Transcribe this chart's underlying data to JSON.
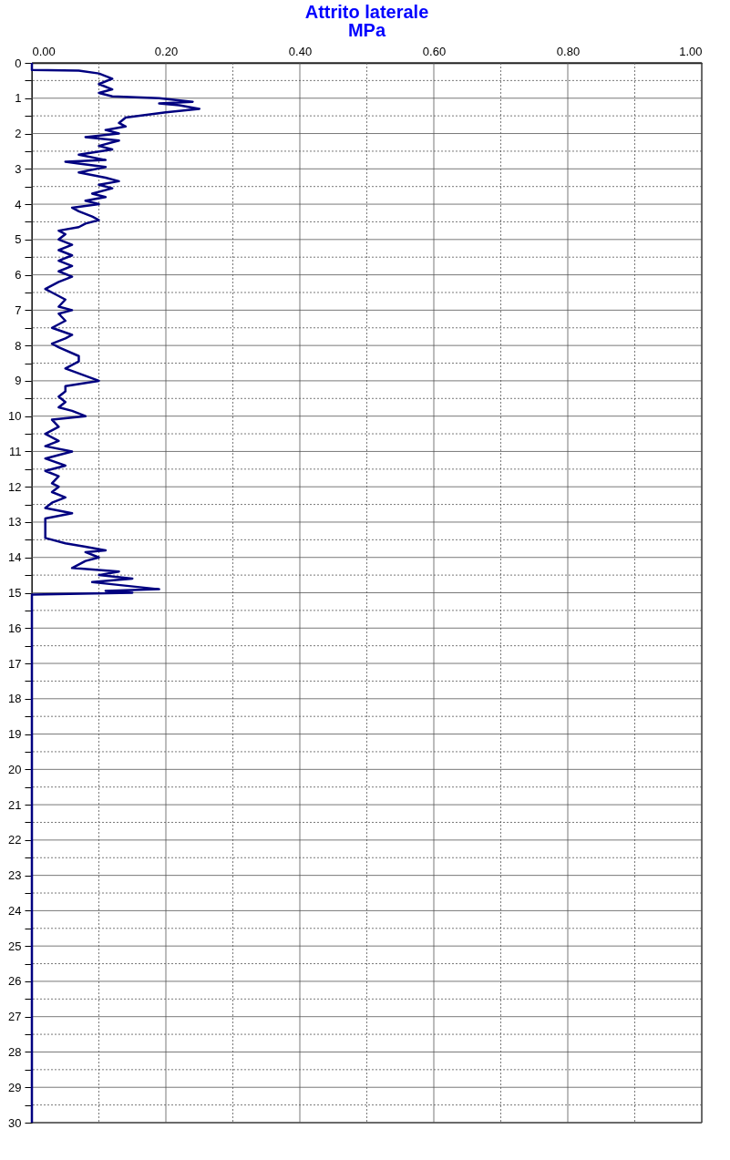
{
  "chart_data": {
    "type": "line",
    "title": "Attrito laterale",
    "subtitle": "MPa",
    "xlim": [
      0,
      1
    ],
    "ylim": [
      30,
      0
    ],
    "xticks": [
      {
        "value": 0,
        "label": "0.00"
      },
      {
        "value": 0.1,
        "label": null
      },
      {
        "value": 0.2,
        "label": "0.20"
      },
      {
        "value": 0.3,
        "label": null
      },
      {
        "value": 0.4,
        "label": "0.40"
      },
      {
        "value": 0.5,
        "label": null
      },
      {
        "value": 0.6,
        "label": "0.60"
      },
      {
        "value": 0.7,
        "label": null
      },
      {
        "value": 0.8,
        "label": "0.80"
      },
      {
        "value": 0.9,
        "label": null
      },
      {
        "value": 1,
        "label": "1.00"
      }
    ],
    "yticks": [
      0,
      {
        "value": 0.5,
        "label": null
      },
      1,
      {
        "value": 1.5,
        "label": null
      },
      2,
      {
        "value": 2.5,
        "label": null
      },
      3,
      {
        "value": 3.5,
        "label": null
      },
      4,
      {
        "value": 4.5,
        "label": null
      },
      5,
      {
        "value": 5.5,
        "label": null
      },
      6,
      {
        "value": 6.5,
        "label": null
      },
      7,
      {
        "value": 7.5,
        "label": null
      },
      8,
      {
        "value": 8.5,
        "label": null
      },
      9,
      {
        "value": 9.5,
        "label": null
      },
      10,
      {
        "value": 10.5,
        "label": null
      },
      11,
      {
        "value": 11.5,
        "label": null
      },
      12,
      {
        "value": 12.5,
        "label": null
      },
      13,
      {
        "value": 13.5,
        "label": null
      },
      14,
      {
        "value": 14.5,
        "label": null
      },
      15,
      {
        "value": 15.5,
        "label": null
      },
      16,
      {
        "value": 16.5,
        "label": null
      },
      17,
      {
        "value": 17.5,
        "label": null
      },
      18,
      {
        "value": 18.5,
        "label": null
      },
      19,
      {
        "value": 19.5,
        "label": null
      },
      20,
      {
        "value": 20.5,
        "label": null
      },
      21,
      {
        "value": 21.5,
        "label": null
      },
      22,
      {
        "value": 22.5,
        "label": null
      },
      23,
      {
        "value": 23.5,
        "label": null
      },
      24,
      {
        "value": 24.5,
        "label": null
      },
      25,
      {
        "value": 25.5,
        "label": null
      },
      26,
      {
        "value": 26.5,
        "label": null
      },
      27,
      {
        "value": 27.5,
        "label": null
      },
      28,
      {
        "value": 28.5,
        "label": null
      },
      29,
      {
        "value": 29.5,
        "label": null
      },
      30
    ],
    "grid": true,
    "marker": "none",
    "line_style": "solid",
    "series": [
      {
        "color": "#000080",
        "x": [
          0.0,
          0.0,
          0.07,
          0.1,
          0.12,
          0.1,
          0.12,
          0.1,
          0.12,
          0.19,
          0.24,
          0.19,
          0.22,
          0.25,
          0.2,
          0.14,
          0.13,
          0.14,
          0.11,
          0.13,
          0.08,
          0.13,
          0.1,
          0.12,
          0.07,
          0.11,
          0.05,
          0.07,
          0.11,
          0.07,
          0.11,
          0.13,
          0.1,
          0.12,
          0.09,
          0.11,
          0.08,
          0.1,
          0.06,
          0.07,
          0.09,
          0.1,
          0.08,
          0.07,
          0.04,
          0.05,
          0.04,
          0.06,
          0.04,
          0.06,
          0.04,
          0.06,
          0.04,
          0.06,
          0.04,
          0.02,
          0.03,
          0.05,
          0.04,
          0.06,
          0.04,
          0.05,
          0.03,
          0.06,
          0.05,
          0.03,
          0.04,
          0.07,
          0.07,
          0.05,
          0.1,
          0.05,
          0.05,
          0.04,
          0.05,
          0.04,
          0.06,
          0.08,
          0.03,
          0.04,
          0.02,
          0.04,
          0.02,
          0.06,
          0.02,
          0.05,
          0.02,
          0.04,
          0.03,
          0.04,
          0.03,
          0.05,
          0.03,
          0.02,
          0.06,
          0.02,
          0.02,
          0.02,
          0.02,
          0.05,
          0.08,
          0.11,
          0.08,
          0.1,
          0.08,
          0.06,
          0.13,
          0.1,
          0.15,
          0.09,
          0.19,
          0.11,
          0.15,
          0.0,
          0.0
        ],
        "values": [
          0.0,
          0.2,
          0.22,
          0.3,
          0.45,
          0.6,
          0.75,
          0.85,
          0.95,
          1.0,
          1.1,
          1.15,
          1.2,
          1.3,
          1.4,
          1.55,
          1.7,
          1.8,
          1.9,
          2.0,
          2.1,
          2.2,
          2.35,
          2.45,
          2.6,
          2.75,
          2.8,
          2.85,
          2.95,
          3.1,
          3.25,
          3.35,
          3.45,
          3.55,
          3.7,
          3.8,
          3.9,
          4.0,
          4.1,
          4.2,
          4.35,
          4.45,
          4.55,
          4.65,
          4.75,
          4.85,
          5.0,
          5.15,
          5.3,
          5.45,
          5.6,
          5.75,
          5.9,
          6.05,
          6.2,
          6.4,
          6.5,
          6.7,
          6.9,
          7.0,
          7.1,
          7.3,
          7.5,
          7.7,
          7.8,
          7.95,
          8.05,
          8.3,
          8.45,
          8.65,
          9.0,
          9.15,
          9.3,
          9.45,
          9.6,
          9.75,
          9.85,
          10.0,
          10.1,
          10.3,
          10.5,
          10.7,
          10.85,
          11.0,
          11.2,
          11.4,
          11.55,
          11.7,
          11.9,
          12.0,
          12.15,
          12.3,
          12.45,
          12.6,
          12.75,
          12.9,
          13.1,
          13.3,
          13.45,
          13.6,
          13.7,
          13.8,
          13.85,
          14.0,
          14.1,
          14.3,
          14.4,
          14.5,
          14.6,
          14.7,
          14.9,
          14.95,
          15.0,
          15.05,
          30
        ]
      }
    ]
  }
}
